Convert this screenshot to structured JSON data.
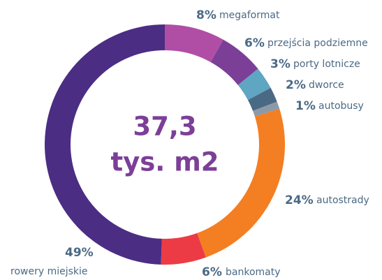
{
  "chart_data": {
    "type": "donut",
    "center_text": [
      "37,3",
      "tys. m2"
    ],
    "categories": [
      "megaformat",
      "przejścia podziemne",
      "porty lotnicze",
      "dworce",
      "autobusy",
      "autostrady",
      "bankomaty",
      "rowery miejskie"
    ],
    "values": [
      8,
      6,
      3,
      2,
      1,
      24,
      6,
      49
    ],
    "value_labels": [
      "8%",
      "6%",
      "3%",
      "2%",
      "1%",
      "24%",
      "6%",
      "49%"
    ],
    "colors": [
      "#b04ea6",
      "#7c3f98",
      "#5ea6c2",
      "#4a6985",
      "#8d9aa6",
      "#f47e22",
      "#ec3b45",
      "#4b2d84"
    ]
  }
}
